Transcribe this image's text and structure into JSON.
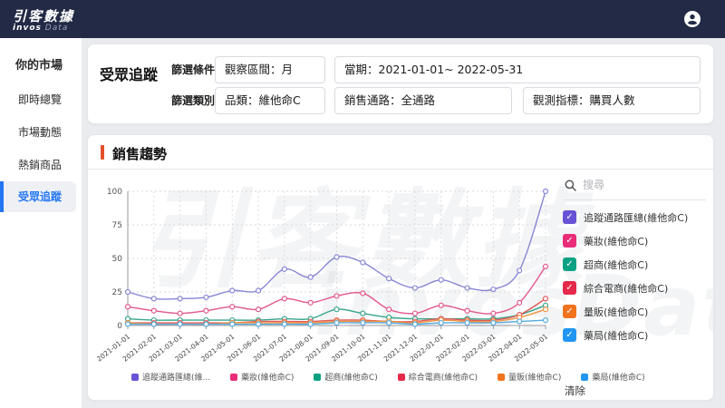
{
  "topbar": {
    "logo_line1": "引客數據",
    "logo_invos": "invos",
    "logo_data": "Data"
  },
  "sidebar": {
    "items": [
      {
        "label": "你的市場",
        "active": false
      },
      {
        "label": "即時總覽",
        "active": false
      },
      {
        "label": "市場動態",
        "active": false
      },
      {
        "label": "熱銷商品",
        "active": false
      },
      {
        "label": "受眾追蹤",
        "active": true
      }
    ]
  },
  "filters": {
    "title": "受眾追蹤",
    "row1_label": "篩選條件",
    "row2_label": "篩選類別",
    "observe_interval": "觀察區間：月",
    "period": "當期：2021-01-01~ 2022-05-31",
    "category": "品類：維他命C",
    "channel": "銷售通路：全通路",
    "metric": "觀測指標：購買人數"
  },
  "watermark": {
    "line1": "引客數據",
    "line2": "invosData"
  },
  "chart_data": {
    "type": "line",
    "title": "銷售趨勢",
    "categories": [
      "2021-01-01",
      "2021-02-01",
      "2021-03-01",
      "2021-04-01",
      "2021-05-01",
      "2021-06-01",
      "2021-07-01",
      "2021-08-01",
      "2021-09-01",
      "2021-10-01",
      "2021-11-01",
      "2021-12-01",
      "2022-01-01",
      "2022-02-01",
      "2022-03-01",
      "2022-04-01",
      "2022-05-01"
    ],
    "ylim": [
      0,
      100
    ],
    "yticks": [
      0,
      25,
      50,
      75,
      100
    ],
    "grid": true,
    "legend_position": "right",
    "series": [
      {
        "name": "追蹤通路匯總(維他命C)",
        "color": "#8886d5",
        "values": [
          25,
          20,
          20,
          21,
          26,
          26,
          42,
          36,
          51,
          47,
          35,
          28,
          34,
          28,
          27,
          41,
          100
        ]
      },
      {
        "name": "藥妝(維他命C)",
        "color": "#e2578c",
        "values": [
          14,
          11,
          9,
          11,
          14,
          12,
          20,
          17,
          22,
          24,
          12,
          9,
          15,
          11,
          9,
          17,
          44
        ]
      },
      {
        "name": "超商(維他命C)",
        "color": "#3aa68c",
        "values": [
          5,
          4,
          4,
          4,
          4,
          4,
          5,
          5,
          12,
          9,
          6,
          5,
          5,
          5,
          5,
          8,
          15
        ]
      },
      {
        "name": "綜合電商(維他命C)",
        "color": "#e25a5a",
        "values": [
          2,
          2,
          2,
          2,
          2,
          3,
          3,
          3,
          4,
          4,
          3,
          3,
          5,
          4,
          4,
          8,
          20
        ]
      },
      {
        "name": "量販(維他命C)",
        "color": "#ef933e",
        "values": [
          2,
          1,
          1,
          1,
          2,
          2,
          2,
          2,
          3,
          3,
          3,
          2,
          4,
          3,
          3,
          6,
          12
        ]
      },
      {
        "name": "藥局(維他命C)",
        "color": "#55aadd",
        "values": [
          1,
          1,
          1,
          1,
          1,
          1,
          1,
          1,
          2,
          2,
          2,
          1,
          2,
          2,
          2,
          3,
          4
        ]
      }
    ]
  },
  "legend_panel": {
    "search_placeholder": "搜尋",
    "clear_label": "清除",
    "items": [
      {
        "label": "追蹤通路匯總(維他命C)",
        "color": "#6852d6",
        "checked": true
      },
      {
        "label": "藥妝(維他命C)",
        "color": "#e92d78",
        "checked": true
      },
      {
        "label": "超商(維他命C)",
        "color": "#0ca183",
        "checked": true
      },
      {
        "label": "綜合電商(維他命C)",
        "color": "#e5294a",
        "checked": true
      },
      {
        "label": "量販(維他命C)",
        "color": "#f1731d",
        "checked": true
      },
      {
        "label": "藥局(維他命C)",
        "color": "#2196f3",
        "checked": true
      }
    ]
  },
  "bottom_legend": {
    "items": [
      {
        "label": "追蹤通路匯總(維...",
        "color": "#6852d6"
      },
      {
        "label": "藥妝(維他命C)",
        "color": "#e92d78"
      },
      {
        "label": "超商(維他命C)",
        "color": "#0ca183"
      },
      {
        "label": "綜合電商(維他命C)",
        "color": "#e5294a"
      },
      {
        "label": "量販(維他命C)",
        "color": "#f1731d"
      },
      {
        "label": "藥局(維他命C)",
        "color": "#2196f3"
      }
    ]
  },
  "icons": {
    "checkbox_check": "✓"
  }
}
